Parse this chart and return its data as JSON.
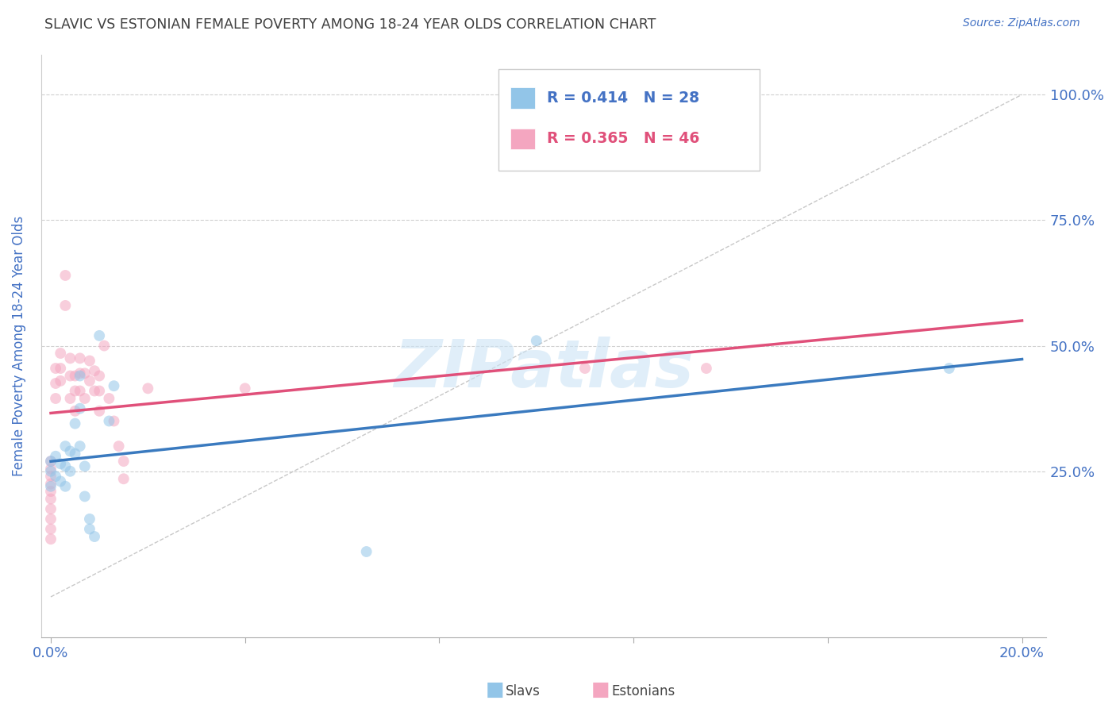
{
  "title": "SLAVIC VS ESTONIAN FEMALE POVERTY AMONG 18-24 YEAR OLDS CORRELATION CHART",
  "source": "Source: ZipAtlas.com",
  "ylabel": "Female Poverty Among 18-24 Year Olds",
  "xlim": [
    -0.002,
    0.205
  ],
  "ylim": [
    -0.08,
    1.08
  ],
  "y_ticks": [
    0.25,
    0.5,
    0.75,
    1.0
  ],
  "y_tick_labels": [
    "25.0%",
    "50.0%",
    "75.0%",
    "100.0%"
  ],
  "x_ticks": [
    0.0,
    0.04,
    0.08,
    0.12,
    0.16,
    0.2
  ],
  "x_tick_labels": [
    "0.0%",
    "",
    "",
    "",
    "",
    "20.0%"
  ],
  "watermark": "ZIPatlas",
  "slavs_color": "#92c5e8",
  "estonians_color": "#f4a6c0",
  "slavs_line_color": "#3a7abf",
  "estonians_line_color": "#e0507a",
  "blue_text_color": "#4472c4",
  "title_color": "#404040",
  "grid_color": "#d0d0d0",
  "slavs_x": [
    0.0,
    0.0,
    0.0,
    0.001,
    0.001,
    0.002,
    0.002,
    0.003,
    0.003,
    0.003,
    0.004,
    0.004,
    0.005,
    0.005,
    0.006,
    0.006,
    0.006,
    0.007,
    0.007,
    0.008,
    0.008,
    0.009,
    0.01,
    0.012,
    0.013,
    0.065,
    0.1,
    0.185
  ],
  "slavs_y": [
    0.27,
    0.25,
    0.22,
    0.28,
    0.24,
    0.265,
    0.23,
    0.3,
    0.26,
    0.22,
    0.29,
    0.25,
    0.345,
    0.285,
    0.44,
    0.375,
    0.3,
    0.26,
    0.2,
    0.155,
    0.135,
    0.12,
    0.52,
    0.35,
    0.42,
    0.09,
    0.51,
    0.455
  ],
  "estonians_x": [
    0.0,
    0.0,
    0.0,
    0.0,
    0.0,
    0.0,
    0.0,
    0.0,
    0.0,
    0.0,
    0.001,
    0.001,
    0.001,
    0.002,
    0.002,
    0.002,
    0.003,
    0.003,
    0.004,
    0.004,
    0.004,
    0.005,
    0.005,
    0.005,
    0.006,
    0.006,
    0.006,
    0.007,
    0.007,
    0.008,
    0.008,
    0.009,
    0.009,
    0.01,
    0.01,
    0.01,
    0.011,
    0.012,
    0.013,
    0.014,
    0.015,
    0.015,
    0.02,
    0.04,
    0.11,
    0.135
  ],
  "estonians_y": [
    0.27,
    0.255,
    0.24,
    0.225,
    0.21,
    0.195,
    0.175,
    0.155,
    0.135,
    0.115,
    0.455,
    0.425,
    0.395,
    0.485,
    0.455,
    0.43,
    0.64,
    0.58,
    0.475,
    0.44,
    0.395,
    0.44,
    0.41,
    0.37,
    0.475,
    0.445,
    0.41,
    0.445,
    0.395,
    0.47,
    0.43,
    0.45,
    0.41,
    0.44,
    0.41,
    0.37,
    0.5,
    0.395,
    0.35,
    0.3,
    0.27,
    0.235,
    0.415,
    0.415,
    0.455,
    0.455
  ],
  "marker_size": 100,
  "marker_alpha": 0.55,
  "legend_R1": "0.414",
  "legend_N1": "28",
  "legend_R2": "0.365",
  "legend_N2": "46"
}
